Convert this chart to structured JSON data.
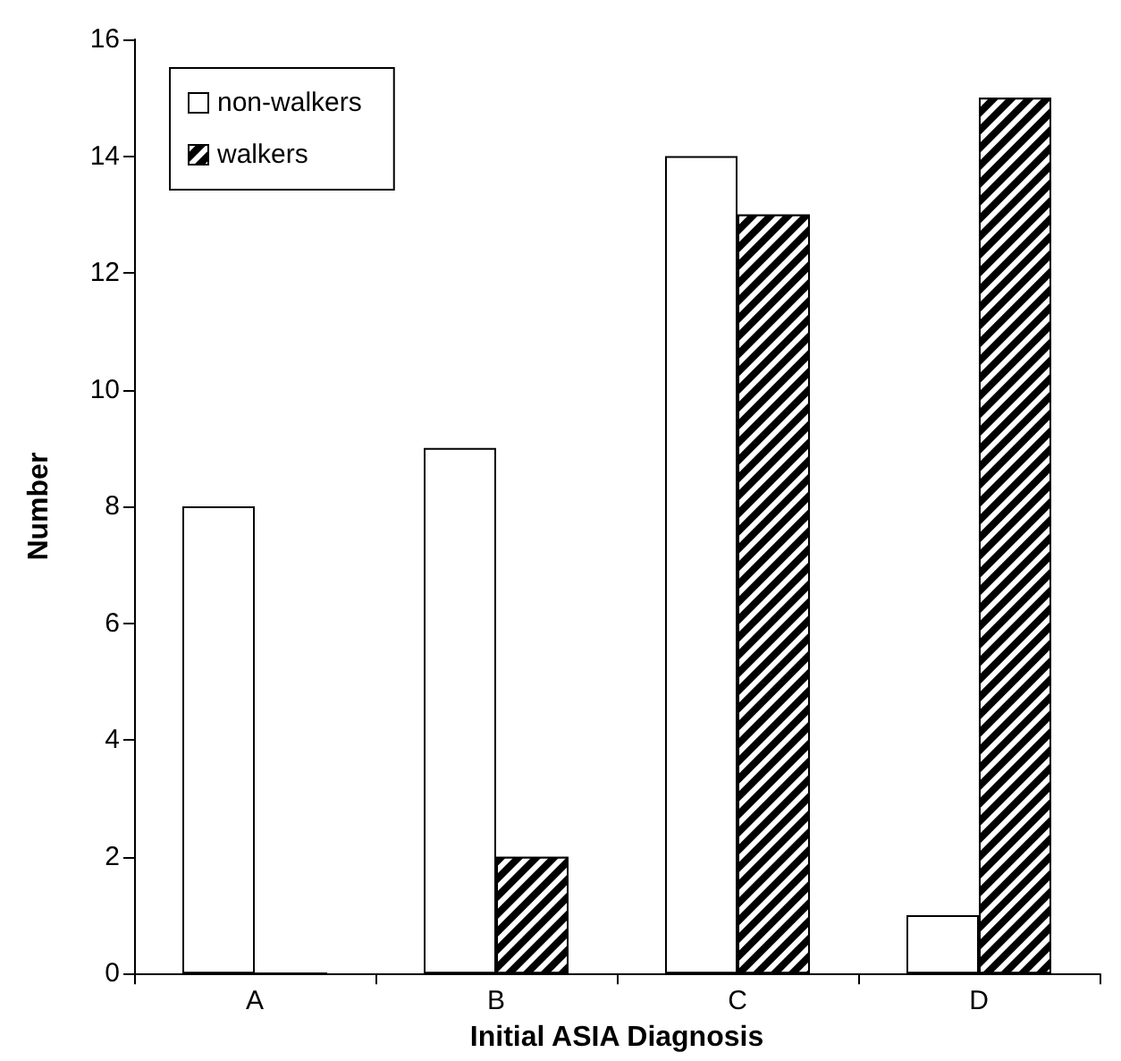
{
  "chart_data": {
    "type": "bar",
    "xlabel": "Initial ASIA Diagnosis",
    "ylabel": "Number",
    "categories": [
      "A",
      "B",
      "C",
      "D"
    ],
    "series": [
      {
        "name": "non-walkers",
        "color": "#ffffff",
        "values": [
          8,
          9,
          14,
          1
        ]
      },
      {
        "name": "walkers",
        "color": "#000000",
        "values": [
          0,
          2,
          13,
          15
        ]
      }
    ],
    "ylim": [
      0,
      16
    ],
    "yticks": [
      0,
      2,
      4,
      6,
      8,
      10,
      12,
      14,
      16
    ],
    "grid": false,
    "legend": "top left"
  }
}
